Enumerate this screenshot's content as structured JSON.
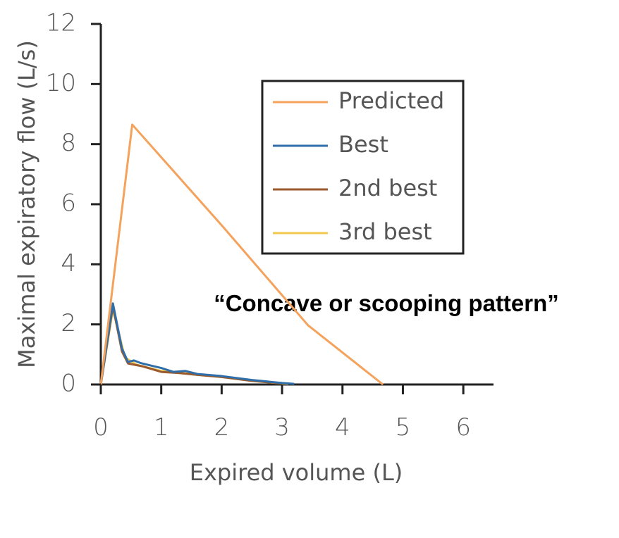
{
  "chart_data": {
    "type": "line",
    "xlabel": "Expired volume (L)",
    "ylabel": "Maximal expiratory flow (L/s)",
    "annotation": "“Concave or scooping pattern”",
    "xlim": [
      0,
      6.5
    ],
    "xticks": [
      0,
      1,
      2,
      3,
      4,
      5,
      6
    ],
    "ylim": [
      0,
      12
    ],
    "yticks": [
      0,
      2,
      4,
      6,
      8,
      10,
      12
    ],
    "legend": "upper right",
    "series": [
      {
        "name": "Predicted",
        "color": "#f4a25c",
        "x": [
          0,
          0.52,
          2,
          3.43,
          4.67
        ],
        "values": [
          0,
          8.65,
          5.3,
          1.97,
          0
        ]
      },
      {
        "name": "Best",
        "color": "#2f6ea8",
        "x": [
          0,
          0.2,
          0.35,
          0.45,
          0.55,
          0.65,
          0.85,
          1,
          1.2,
          1.4,
          1.6,
          2,
          2.5,
          3,
          3.2
        ],
        "values": [
          0,
          2.7,
          1.2,
          0.75,
          0.8,
          0.72,
          0.62,
          0.55,
          0.42,
          0.45,
          0.35,
          0.28,
          0.15,
          0.05,
          0.02
        ]
      },
      {
        "name": "2nd best",
        "color": "#9a5a2c",
        "x": [
          0,
          0.2,
          0.35,
          0.45,
          0.7,
          1,
          1.3,
          1.6,
          2,
          2.5,
          3
        ],
        "values": [
          0,
          2.6,
          1.1,
          0.7,
          0.6,
          0.42,
          0.38,
          0.32,
          0.25,
          0.12,
          0.04
        ]
      },
      {
        "name": "3rd best",
        "color": "#f2c94c",
        "x": [
          0,
          0.2,
          0.4,
          0.6,
          1,
          1.5,
          2,
          2.6,
          3.1
        ],
        "values": [
          0,
          2.5,
          0.9,
          0.65,
          0.45,
          0.35,
          0.25,
          0.1,
          0.02
        ]
      }
    ]
  }
}
